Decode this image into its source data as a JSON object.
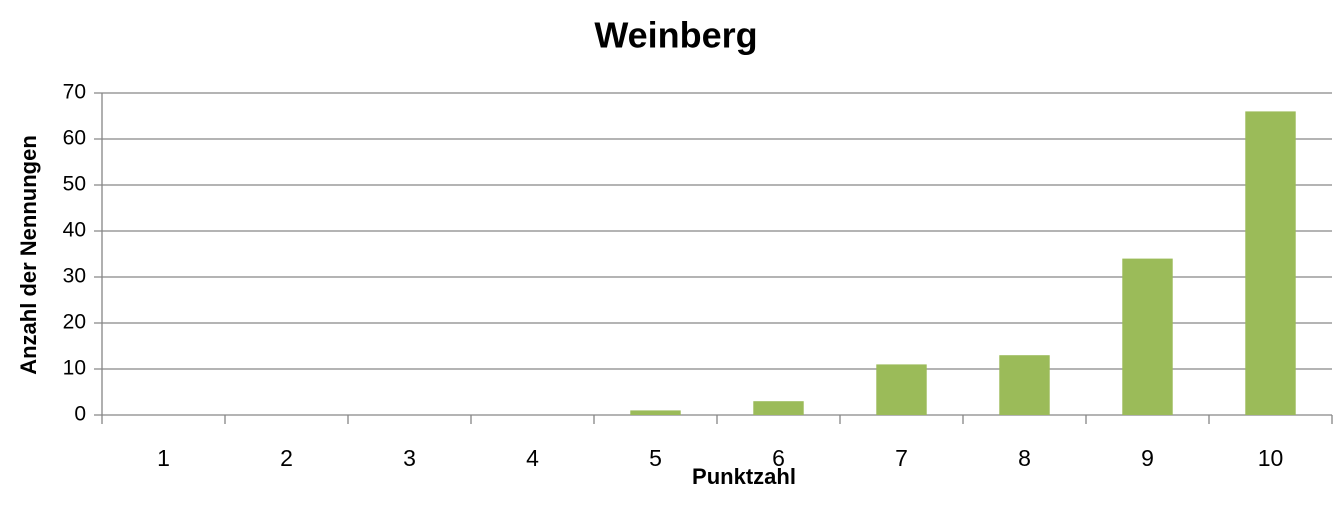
{
  "chart_data": {
    "type": "bar",
    "title": "Weinberg",
    "x_label": "Punktzahl",
    "y_label": "Anzahl der Nennungen",
    "categories": [
      "1",
      "2",
      "3",
      "4",
      "5",
      "6",
      "7",
      "8",
      "9",
      "10"
    ],
    "values": [
      0,
      0,
      0,
      0,
      1,
      3,
      11,
      13,
      34,
      66
    ],
    "color": "#9bbb59",
    "ylim": [
      0,
      70
    ],
    "yticks": [
      0,
      10,
      20,
      30,
      40,
      50,
      60,
      70
    ],
    "grid": true
  }
}
